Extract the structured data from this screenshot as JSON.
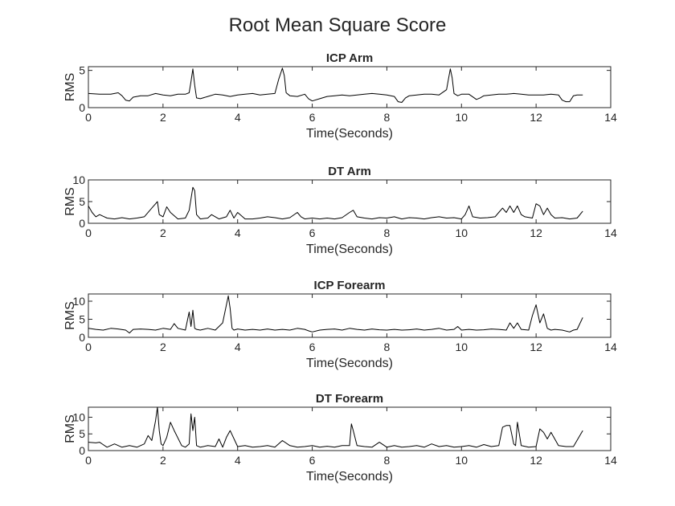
{
  "figure": {
    "title": "Root Mean Square Score"
  },
  "chart_data": [
    {
      "type": "line",
      "title": "ICP Arm",
      "xlabel": "Time(Seconds)",
      "ylabel": "RMS",
      "xlim": [
        0,
        14
      ],
      "ylim": [
        0,
        5.5
      ],
      "xticks": [
        0,
        2,
        4,
        6,
        8,
        10,
        12,
        14
      ],
      "yticks": [
        0,
        5
      ],
      "grid": false,
      "series": [
        {
          "color": "#000000",
          "x": [
            0,
            0.3,
            0.6,
            0.8,
            0.9,
            1.0,
            1.1,
            1.2,
            1.4,
            1.6,
            1.8,
            2.0,
            2.2,
            2.4,
            2.6,
            2.7,
            2.75,
            2.8,
            2.85,
            2.9,
            3.0,
            3.2,
            3.4,
            3.6,
            3.8,
            4.0,
            4.2,
            4.4,
            4.6,
            4.8,
            5.0,
            5.1,
            5.2,
            5.25,
            5.3,
            5.4,
            5.6,
            5.8,
            5.9,
            6.0,
            6.2,
            6.4,
            6.6,
            6.8,
            7.0,
            7.2,
            7.4,
            7.6,
            7.8,
            8.0,
            8.2,
            8.3,
            8.4,
            8.5,
            8.6,
            8.8,
            9.0,
            9.2,
            9.4,
            9.6,
            9.65,
            9.7,
            9.75,
            9.8,
            9.9,
            10.0,
            10.2,
            10.4,
            10.5,
            10.6,
            10.8,
            11.0,
            11.2,
            11.4,
            11.6,
            11.8,
            12.0,
            12.2,
            12.4,
            12.6,
            12.7,
            12.8,
            12.9,
            13.0,
            13.1,
            13.25
          ],
          "y": [
            1.9,
            1.8,
            1.8,
            2.0,
            1.6,
            1.0,
            0.9,
            1.4,
            1.6,
            1.6,
            1.9,
            1.7,
            1.6,
            1.8,
            1.8,
            2.0,
            3.5,
            5.2,
            3.0,
            1.3,
            1.2,
            1.5,
            1.8,
            1.7,
            1.5,
            1.7,
            1.8,
            1.9,
            1.7,
            1.8,
            1.9,
            3.8,
            5.3,
            4.3,
            2.0,
            1.6,
            1.5,
            1.8,
            1.2,
            0.9,
            1.2,
            1.5,
            1.6,
            1.7,
            1.6,
            1.7,
            1.8,
            1.9,
            1.8,
            1.7,
            1.5,
            0.8,
            0.7,
            1.3,
            1.6,
            1.7,
            1.8,
            1.8,
            1.7,
            2.4,
            3.8,
            5.2,
            4.0,
            1.9,
            1.6,
            1.8,
            1.8,
            1.1,
            1.3,
            1.6,
            1.7,
            1.8,
            1.8,
            1.9,
            1.8,
            1.7,
            1.7,
            1.7,
            1.8,
            1.7,
            1.0,
            0.8,
            0.8,
            1.6,
            1.7,
            1.7
          ]
        }
      ]
    },
    {
      "type": "line",
      "title": "DT Arm",
      "xlabel": "Time(Seconds)",
      "ylabel": "RMS",
      "xlim": [
        0,
        14
      ],
      "ylim": [
        0,
        10
      ],
      "xticks": [
        0,
        2,
        4,
        6,
        8,
        10,
        12,
        14
      ],
      "yticks": [
        0,
        5,
        10
      ],
      "grid": false,
      "series": [
        {
          "color": "#000000",
          "x": [
            0,
            0.1,
            0.2,
            0.3,
            0.5,
            0.7,
            0.9,
            1.1,
            1.3,
            1.5,
            1.7,
            1.8,
            1.85,
            1.9,
            2.0,
            2.1,
            2.2,
            2.4,
            2.6,
            2.7,
            2.8,
            2.85,
            2.9,
            3.0,
            3.2,
            3.3,
            3.5,
            3.7,
            3.8,
            3.9,
            4.0,
            4.2,
            4.4,
            4.6,
            4.8,
            5.0,
            5.2,
            5.4,
            5.6,
            5.7,
            5.8,
            6.0,
            6.2,
            6.4,
            6.6,
            6.8,
            7.0,
            7.1,
            7.2,
            7.4,
            7.6,
            7.8,
            8.0,
            8.2,
            8.4,
            8.6,
            8.8,
            9.0,
            9.2,
            9.4,
            9.6,
            9.8,
            10.0,
            10.1,
            10.2,
            10.3,
            10.5,
            10.7,
            10.9,
            11.0,
            11.1,
            11.2,
            11.3,
            11.4,
            11.5,
            11.6,
            11.7,
            11.9,
            12.0,
            12.1,
            12.2,
            12.3,
            12.4,
            12.5,
            12.7,
            12.9,
            13.1,
            13.25
          ],
          "y": [
            4.0,
            2.5,
            1.5,
            2.0,
            1.2,
            1.0,
            1.3,
            1.0,
            1.2,
            1.5,
            3.5,
            4.5,
            5.0,
            2.0,
            1.5,
            3.8,
            2.5,
            1.0,
            1.2,
            3.0,
            8.3,
            7.5,
            2.0,
            1.0,
            1.2,
            2.0,
            1.0,
            1.5,
            3.0,
            1.2,
            2.5,
            1.0,
            1.0,
            1.2,
            1.5,
            1.3,
            1.0,
            1.3,
            2.5,
            1.5,
            1.0,
            1.2,
            1.0,
            1.2,
            1.0,
            1.3,
            2.5,
            3.0,
            1.5,
            1.2,
            1.0,
            1.3,
            1.2,
            1.5,
            1.0,
            1.3,
            1.2,
            1.0,
            1.3,
            1.5,
            1.2,
            1.3,
            1.0,
            2.0,
            4.0,
            1.5,
            1.2,
            1.3,
            1.5,
            2.5,
            3.5,
            2.5,
            4.0,
            2.5,
            4.0,
            2.0,
            1.5,
            1.2,
            4.5,
            4.0,
            2.0,
            3.5,
            2.0,
            1.2,
            1.3,
            1.0,
            1.2,
            2.8
          ]
        }
      ]
    },
    {
      "type": "line",
      "title": "ICP Forearm",
      "xlabel": "Time(Seconds)",
      "ylabel": "RMS",
      "xlim": [
        0,
        14
      ],
      "ylim": [
        0,
        12
      ],
      "xticks": [
        0,
        2,
        4,
        6,
        8,
        10,
        12,
        14
      ],
      "yticks": [
        0,
        5,
        10
      ],
      "grid": false,
      "series": [
        {
          "color": "#000000",
          "x": [
            0,
            0.2,
            0.4,
            0.6,
            0.8,
            1.0,
            1.1,
            1.2,
            1.4,
            1.6,
            1.8,
            2.0,
            2.2,
            2.3,
            2.4,
            2.6,
            2.7,
            2.75,
            2.8,
            2.85,
            2.9,
            3.0,
            3.2,
            3.4,
            3.6,
            3.75,
            3.8,
            3.85,
            3.9,
            4.0,
            4.2,
            4.4,
            4.6,
            4.8,
            5.0,
            5.2,
            5.4,
            5.6,
            5.8,
            5.9,
            6.0,
            6.2,
            6.4,
            6.6,
            6.8,
            7.0,
            7.2,
            7.4,
            7.6,
            7.8,
            8.0,
            8.2,
            8.4,
            8.6,
            8.8,
            9.0,
            9.2,
            9.4,
            9.6,
            9.8,
            9.9,
            10.0,
            10.2,
            10.4,
            10.6,
            10.8,
            11.0,
            11.2,
            11.3,
            11.4,
            11.5,
            11.6,
            11.8,
            11.9,
            12.0,
            12.1,
            12.2,
            12.3,
            12.4,
            12.5,
            12.7,
            12.9,
            13.0,
            13.1,
            13.25
          ],
          "y": [
            2.5,
            2.2,
            2.0,
            2.5,
            2.3,
            2.0,
            1.2,
            2.2,
            2.3,
            2.2,
            2.0,
            2.5,
            2.2,
            3.8,
            2.5,
            2.0,
            7.0,
            3.0,
            7.5,
            2.5,
            2.2,
            2.0,
            2.5,
            2.0,
            4.0,
            11.5,
            8.0,
            2.5,
            2.0,
            2.3,
            2.0,
            2.2,
            2.0,
            2.3,
            2.0,
            2.2,
            2.0,
            2.5,
            2.2,
            1.8,
            1.5,
            2.0,
            2.2,
            2.3,
            2.0,
            2.5,
            2.2,
            2.0,
            2.3,
            2.1,
            2.0,
            2.2,
            2.0,
            2.1,
            2.3,
            2.0,
            2.2,
            2.5,
            2.0,
            2.2,
            3.0,
            2.0,
            2.2,
            2.0,
            2.1,
            2.3,
            2.2,
            2.0,
            4.0,
            2.5,
            4.0,
            2.2,
            2.0,
            6.0,
            9.0,
            4.0,
            6.5,
            2.5,
            2.0,
            2.2,
            2.0,
            1.5,
            2.0,
            2.2,
            5.5
          ]
        }
      ]
    },
    {
      "type": "line",
      "title": "DT Forearm",
      "xlabel": "Time(Seconds)",
      "ylabel": "RMS",
      "xlim": [
        0,
        14
      ],
      "ylim": [
        0,
        13
      ],
      "xticks": [
        0,
        2,
        4,
        6,
        8,
        10,
        12,
        14
      ],
      "yticks": [
        0,
        5,
        10
      ],
      "grid": false,
      "series": [
        {
          "color": "#000000",
          "x": [
            0,
            0.2,
            0.3,
            0.5,
            0.7,
            0.9,
            1.1,
            1.3,
            1.5,
            1.6,
            1.7,
            1.8,
            1.85,
            1.9,
            1.95,
            2.0,
            2.1,
            2.2,
            2.3,
            2.5,
            2.6,
            2.7,
            2.75,
            2.8,
            2.85,
            2.9,
            3.0,
            3.2,
            3.4,
            3.5,
            3.6,
            3.7,
            3.8,
            4.0,
            4.2,
            4.4,
            4.6,
            4.8,
            5.0,
            5.2,
            5.4,
            5.6,
            5.8,
            6.0,
            6.2,
            6.4,
            6.6,
            6.8,
            7.0,
            7.05,
            7.1,
            7.2,
            7.4,
            7.6,
            7.8,
            8.0,
            8.2,
            8.4,
            8.6,
            8.8,
            9.0,
            9.2,
            9.4,
            9.6,
            9.8,
            10.0,
            10.2,
            10.4,
            10.6,
            10.8,
            11.0,
            11.1,
            11.2,
            11.3,
            11.4,
            11.45,
            11.5,
            11.6,
            11.8,
            12.0,
            12.1,
            12.2,
            12.3,
            12.4,
            12.6,
            12.8,
            13.0,
            13.25
          ],
          "y": [
            2.5,
            2.3,
            2.5,
            1.0,
            2.0,
            1.0,
            1.5,
            1.0,
            2.0,
            4.5,
            3.0,
            9.0,
            13.0,
            6.0,
            2.0,
            1.5,
            4.0,
            8.5,
            6.0,
            1.5,
            1.0,
            2.0,
            11.0,
            6.0,
            10.0,
            1.5,
            1.0,
            1.5,
            1.2,
            3.5,
            1.0,
            4.0,
            6.0,
            1.2,
            1.5,
            1.0,
            1.2,
            1.5,
            1.0,
            3.0,
            1.5,
            1.0,
            1.2,
            1.5,
            1.0,
            1.3,
            1.0,
            1.5,
            1.5,
            8.0,
            6.0,
            1.5,
            1.2,
            1.0,
            2.5,
            1.0,
            1.5,
            1.0,
            1.2,
            1.5,
            1.0,
            2.0,
            1.2,
            1.5,
            1.0,
            1.2,
            1.5,
            1.0,
            1.8,
            1.2,
            1.5,
            7.0,
            7.5,
            7.5,
            2.0,
            1.5,
            8.5,
            1.5,
            1.0,
            1.2,
            6.5,
            5.5,
            3.5,
            5.5,
            1.5,
            1.2,
            1.2,
            6.0
          ]
        }
      ]
    }
  ]
}
